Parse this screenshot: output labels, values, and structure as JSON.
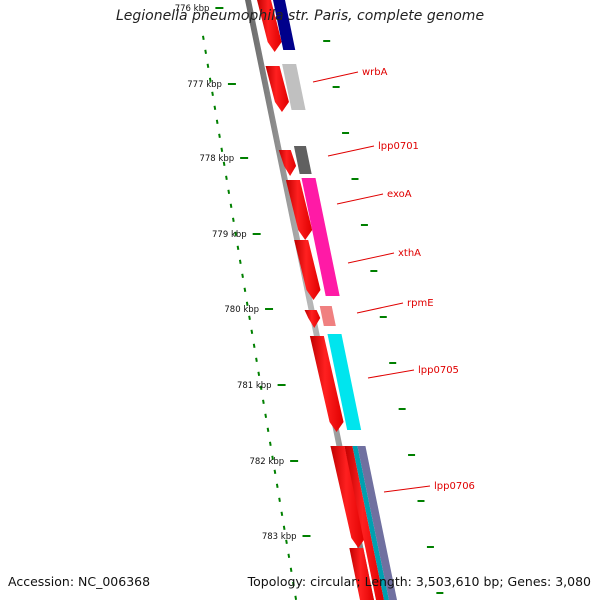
{
  "title": "Legionella pneumophila str. Paris, complete genome",
  "footer": {
    "accession": "Accession: NC_006368",
    "summary": "Topology: circular; Length: 3,503,610 bp; Genes: 3,080"
  },
  "scale_labels": [
    "776 kbp",
    "777 kbp",
    "778 kbp",
    "779 kbp",
    "780 kbp",
    "781 kbp",
    "782 kbp",
    "783 kbp"
  ],
  "gene_labels": [
    "wrbA",
    "lpp0701",
    "exoA",
    "xthA",
    "rpmE",
    "lpp0705",
    "lpp0706"
  ],
  "colors": {
    "backbone": "#888888",
    "gene_strand": "#ff0000",
    "gc_dots": "#008000",
    "label": "#e00000",
    "wrbA": "#c0c0c0",
    "lpp0701": "#606060",
    "exoA": "#ff1aa6",
    "rpmE": "#f08080",
    "lpp0705": "#00e5ee",
    "upstream": "#00008b",
    "lpp0706": "#7070a0"
  }
}
